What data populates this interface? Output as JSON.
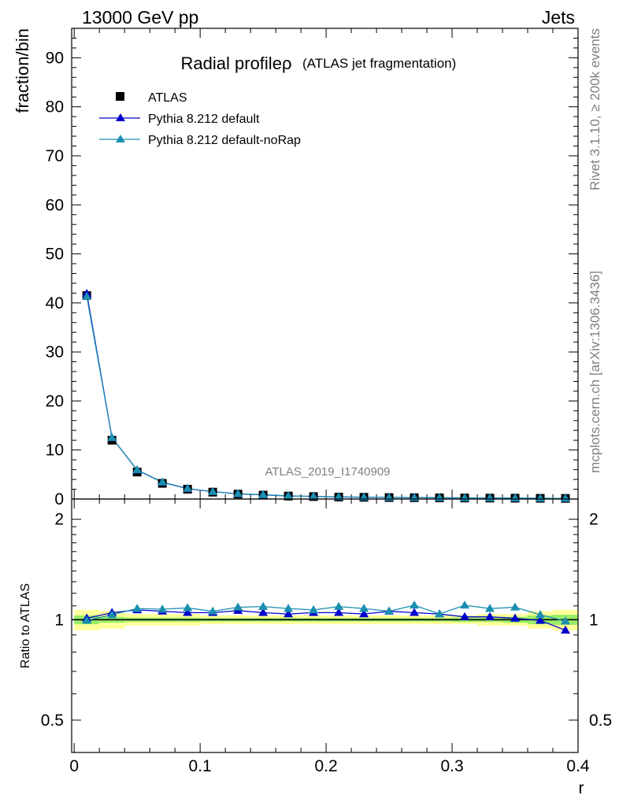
{
  "header": {
    "left_label": "13000 GeV pp",
    "right_label": "Jets"
  },
  "side_labels": {
    "rivet": "Rivet 3.1.10, ≥ 200k events",
    "mcplots": "mcplots.cern.ch [arXiv:1306.3436]"
  },
  "watermark": "ATLAS_2019_I1740909",
  "colors": {
    "atlas": "#000000",
    "default": "#0000cc",
    "noRap": "#1a8fb0",
    "band_outer": "#ffff99",
    "band_inner": "#99ee66",
    "ref_line": "#000000"
  },
  "chart_data": [
    {
      "type": "scatter",
      "panel": "main",
      "title_main": "Radial profile",
      "title_symbol": "ρ",
      "title_sub": "(ATLAS jet fragmentation)",
      "xlabel": "",
      "ylabel": "fraction/bin",
      "xlim": [
        -0.002,
        0.4
      ],
      "ylim": [
        0,
        96
      ],
      "yticks": [
        0,
        10,
        20,
        30,
        40,
        50,
        60,
        70,
        80,
        90
      ],
      "ytick_labels": [
        "0",
        "10",
        "20",
        "30",
        "40",
        "50",
        "60",
        "70",
        "80",
        "90"
      ],
      "x": [
        0.01,
        0.03,
        0.05,
        0.07,
        0.09,
        0.11,
        0.13,
        0.15,
        0.17,
        0.19,
        0.21,
        0.23,
        0.25,
        0.27,
        0.29,
        0.31,
        0.33,
        0.35,
        0.37,
        0.39
      ],
      "series": [
        {
          "name": "ATLAS",
          "key": "atlas",
          "marker": "square",
          "values": [
            41.5,
            12.0,
            5.5,
            3.2,
            2.0,
            1.4,
            1.0,
            0.8,
            0.6,
            0.5,
            0.4,
            0.35,
            0.3,
            0.27,
            0.24,
            0.21,
            0.19,
            0.17,
            0.15,
            0.13
          ]
        },
        {
          "name": "Pythia 8.212 default",
          "key": "default",
          "marker": "triangle",
          "values": [
            41.9,
            12.5,
            5.9,
            3.4,
            2.1,
            1.5,
            1.06,
            0.85,
            0.63,
            0.53,
            0.42,
            0.37,
            0.32,
            0.29,
            0.25,
            0.22,
            0.2,
            0.18,
            0.15,
            0.12
          ]
        },
        {
          "name": "Pythia 8.212 default-noRap",
          "key": "noRap",
          "marker": "triangle",
          "values": [
            41.3,
            12.5,
            5.95,
            3.45,
            2.15,
            1.5,
            1.08,
            0.87,
            0.65,
            0.54,
            0.43,
            0.38,
            0.33,
            0.3,
            0.25,
            0.23,
            0.21,
            0.19,
            0.15,
            0.13
          ]
        }
      ]
    },
    {
      "type": "line",
      "panel": "ratio",
      "ylabel": "Ratio to ATLAS",
      "xlabel": "r",
      "xlim": [
        -0.002,
        0.4
      ],
      "ylim": [
        0.4,
        2.3
      ],
      "scale": "log",
      "yticks": [
        0.5,
        1,
        2
      ],
      "ytick_labels": [
        "0.5",
        "1",
        "2"
      ],
      "xticks": [
        0,
        0.1,
        0.2,
        0.3,
        0.4
      ],
      "xtick_labels": [
        "0",
        "0.1",
        "0.2",
        "0.3",
        "0.4"
      ],
      "x": [
        0.01,
        0.03,
        0.05,
        0.07,
        0.09,
        0.11,
        0.13,
        0.15,
        0.17,
        0.19,
        0.21,
        0.23,
        0.25,
        0.27,
        0.29,
        0.31,
        0.33,
        0.35,
        0.37,
        0.39
      ],
      "band_outer": [
        0.07,
        0.06,
        0.04,
        0.04,
        0.04,
        0.03,
        0.03,
        0.03,
        0.03,
        0.03,
        0.03,
        0.03,
        0.03,
        0.03,
        0.03,
        0.03,
        0.04,
        0.04,
        0.06,
        0.07
      ],
      "band_inner": [
        0.03,
        0.02,
        0.015,
        0.015,
        0.015,
        0.012,
        0.012,
        0.012,
        0.012,
        0.012,
        0.012,
        0.012,
        0.012,
        0.012,
        0.012,
        0.015,
        0.015,
        0.02,
        0.03,
        0.035
      ],
      "series": [
        {
          "name": "Pythia 8.212 default",
          "key": "default",
          "values": [
            1.01,
            1.05,
            1.07,
            1.06,
            1.05,
            1.05,
            1.065,
            1.05,
            1.04,
            1.05,
            1.05,
            1.04,
            1.06,
            1.05,
            1.04,
            1.02,
            1.02,
            1.01,
            0.995,
            0.93
          ]
        },
        {
          "name": "Pythia 8.212 default-noRap",
          "key": "noRap",
          "values": [
            0.995,
            1.035,
            1.08,
            1.075,
            1.085,
            1.06,
            1.09,
            1.095,
            1.08,
            1.07,
            1.095,
            1.08,
            1.06,
            1.105,
            1.04,
            1.105,
            1.08,
            1.09,
            1.035,
            0.99
          ]
        }
      ]
    }
  ]
}
